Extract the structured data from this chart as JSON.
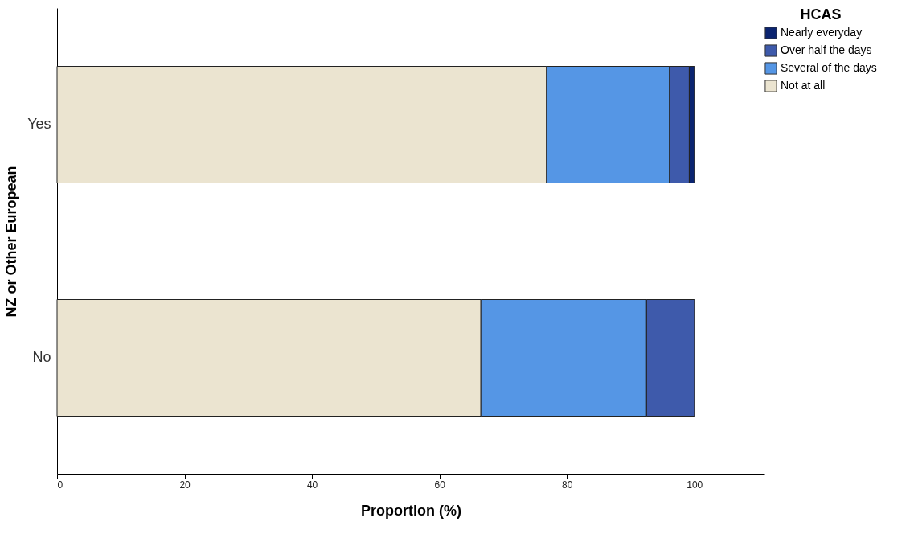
{
  "chart_data": {
    "type": "bar",
    "orientation": "horizontal",
    "stacked": true,
    "categories": [
      "Yes",
      "No"
    ],
    "xlabel": "Proportion (%)",
    "ylabel": "NZ or Other European",
    "legend_title": "HCAS",
    "xlim": [
      0,
      111
    ],
    "xticks": [
      0,
      20,
      40,
      60,
      80,
      100
    ],
    "grid": false,
    "legend": "top right",
    "series": [
      {
        "name": "Not at all",
        "color": "#ebe4d0",
        "values": [
          76.8,
          66.5
        ]
      },
      {
        "name": "Several of the days",
        "color": "#5596e5",
        "values": [
          19.3,
          26.0
        ]
      },
      {
        "name": "Over half the days",
        "color": "#3e5aab",
        "values": [
          3.1,
          7.5
        ]
      },
      {
        "name": "Nearly everyday",
        "color": "#0b2470",
        "values": [
          0.8,
          null
        ]
      }
    ]
  }
}
